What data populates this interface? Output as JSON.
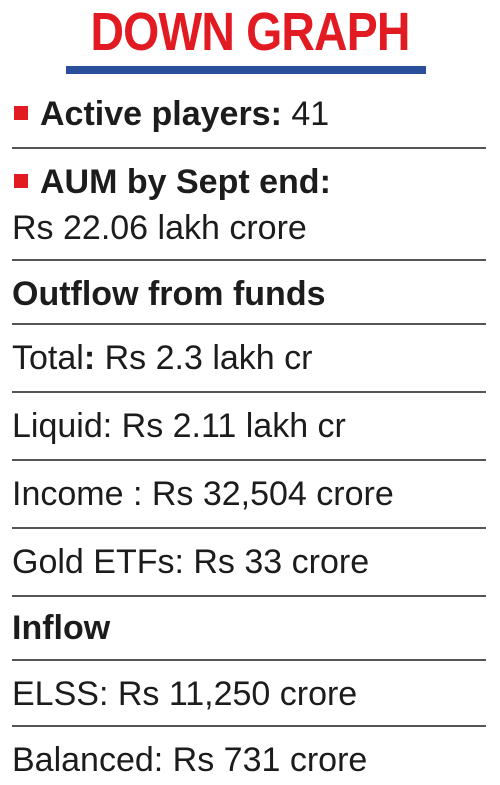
{
  "header": {
    "title": "DOWN GRAPH",
    "accent_color": "#e21b23",
    "rule_color": "#2a4f9a"
  },
  "stats": {
    "active_players": {
      "label": "Active players",
      "separator": ":",
      "value": " 41"
    },
    "aum": {
      "label": "AUM by Sept end",
      "separator": ":",
      "value": "Rs 22.06 lakh crore"
    }
  },
  "outflow": {
    "heading": "Outflow from funds",
    "total": {
      "label": "Total",
      "separator": ":",
      "value": " Rs 2.3 lakh cr"
    },
    "liquid": "Liquid: Rs 2.11 lakh cr",
    "income": "Income : Rs 32,504 crore",
    "gold": "Gold ETFs: Rs 33 crore"
  },
  "inflow": {
    "heading": "Inflow",
    "elss": "ELSS: Rs 11,250 crore",
    "balanced": "Balanced: Rs 731 crore"
  }
}
